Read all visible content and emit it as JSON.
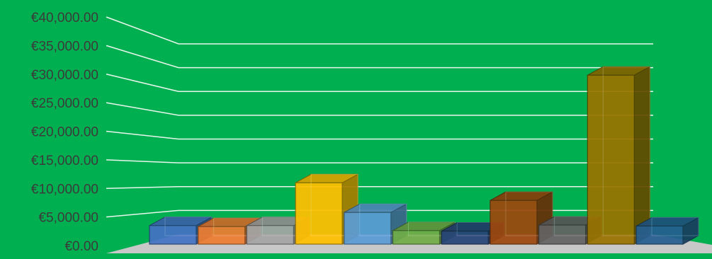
{
  "chart_data": {
    "type": "bar",
    "categories": [
      "",
      "",
      "",
      "",
      "",
      "",
      "",
      "",
      "",
      "",
      ""
    ],
    "series": [
      {
        "values": [
          3700,
          3500,
          3700,
          12200,
          6300,
          2700,
          2600,
          8700,
          3800,
          33600,
          3600
        ]
      }
    ],
    "title": "",
    "xlabel": "",
    "ylabel": "",
    "ylim": [
      0,
      40000
    ],
    "y_ticks": [
      "€0.00",
      "€5,000.00",
      "€10,000.00",
      "€15,000.00",
      "€20,000.00",
      "€25,000.00",
      "€30,000.00",
      "€35,000.00",
      "€40,000.00"
    ],
    "grid": true,
    "legend": "none",
    "style": {
      "background": "#00B050",
      "gridline": "#E8F5EC",
      "floor": "#C8C8C8",
      "tick_text": "#3B3B3B",
      "bar_colors": [
        "#4472C4",
        "#ED7D31",
        "#A5A5A5",
        "#FFC000",
        "#5B9BD5",
        "#70AD47",
        "#264478",
        "#9E480E",
        "#636363",
        "#997300",
        "#255E91"
      ]
    }
  }
}
